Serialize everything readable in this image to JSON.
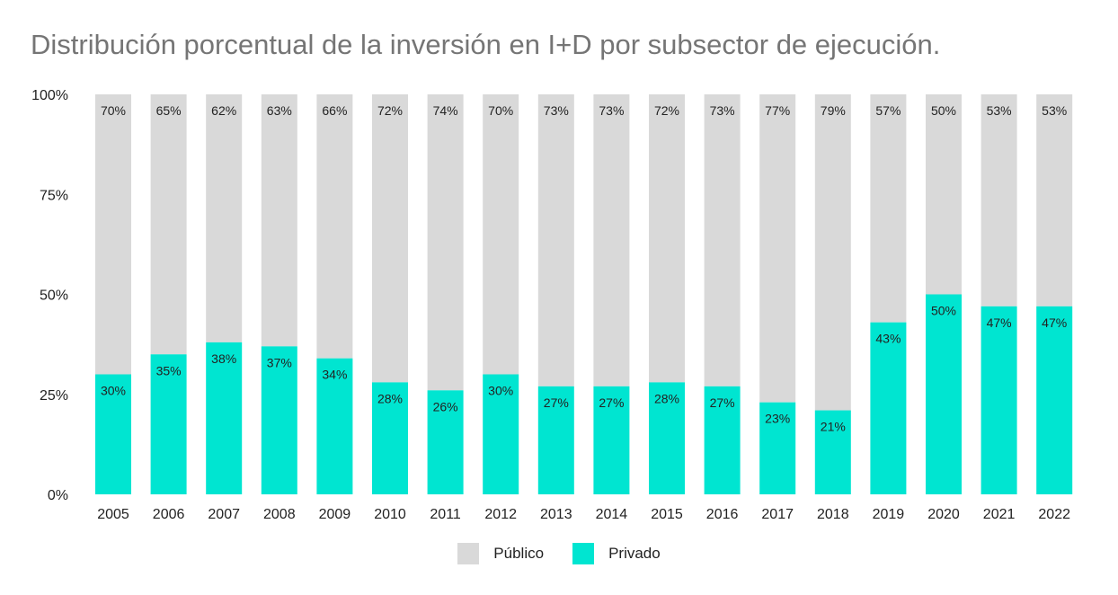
{
  "chart_data": {
    "type": "bar",
    "stacked": true,
    "title": "Distribución porcentual de la inversión en I+D por subsector de ejecución.",
    "categories": [
      "2005",
      "2006",
      "2007",
      "2008",
      "2009",
      "2010",
      "2011",
      "2012",
      "2013",
      "2014",
      "2015",
      "2016",
      "2017",
      "2018",
      "2019",
      "2020",
      "2021",
      "2022"
    ],
    "series": [
      {
        "name": "Privado",
        "color": "#00e5d1",
        "values": [
          30,
          35,
          38,
          37,
          34,
          28,
          26,
          30,
          27,
          27,
          28,
          27,
          23,
          21,
          43,
          50,
          47,
          47
        ]
      },
      {
        "name": "Público",
        "color": "#d9d9d9",
        "values": [
          70,
          65,
          62,
          63,
          66,
          72,
          74,
          70,
          73,
          73,
          72,
          73,
          77,
          79,
          57,
          50,
          53,
          53
        ]
      }
    ],
    "yticks": [
      "0%",
      "25%",
      "50%",
      "75%",
      "100%"
    ],
    "ylim": [
      0,
      100
    ],
    "legend_position": "bottom",
    "grid": false
  }
}
